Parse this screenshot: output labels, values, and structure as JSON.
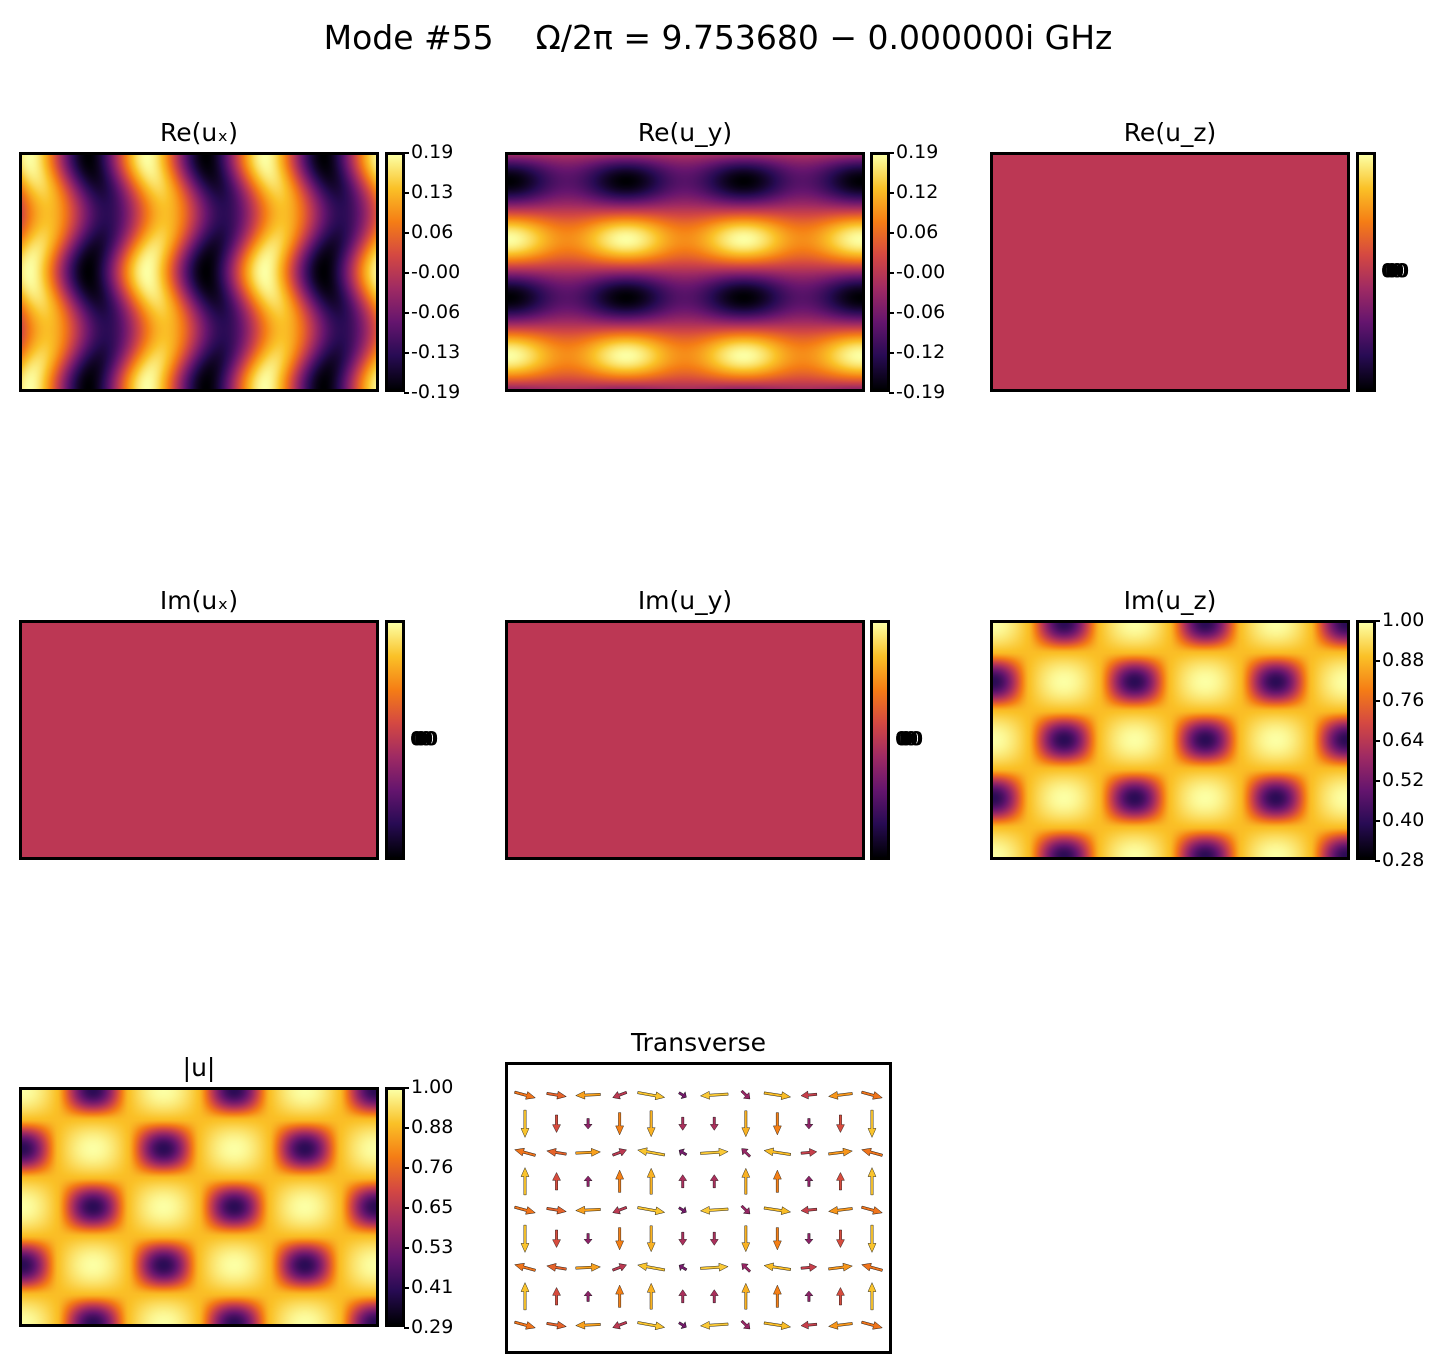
{
  "page_title": "Mode #55    Ω/2π = 9.753680 − 0.000000i GHz",
  "colormap": "inferno",
  "flat_field_color": "#bc3754",
  "chart_data": [
    {
      "type": "heatmap",
      "title": "Re(uₓ)",
      "field_pattern": "vertical stripes along x, period ≈ 1/3 of the width, peaks near x ≈ 0.05, 0.43, 0.77",
      "colorbar_ticks": [
        "0.19",
        "0.13",
        "0.06",
        "-0.00",
        "-0.06",
        "-0.13",
        "-0.19"
      ],
      "clim": [
        -0.19,
        0.19
      ]
    },
    {
      "type": "heatmap",
      "title": "Re(u_y)",
      "field_pattern": "horizontal bands: positive band at y ≈ 0.36, negative band at y ≈ 0.62, weaker bands near the edges",
      "colorbar_ticks": [
        "0.19",
        "0.12",
        "0.06",
        "-0.00",
        "-0.06",
        "-0.12",
        "-0.19"
      ],
      "clim": [
        -0.19,
        0.19
      ]
    },
    {
      "type": "heatmap",
      "title": "Re(u_z)",
      "field_pattern": "uniform (field identically zero)",
      "colorbar_ticks": [
        "0.000",
        "0.000",
        "0.000",
        "0.000",
        "0.000",
        "0.000",
        "0.000"
      ]
    },
    {
      "type": "heatmap",
      "title": "Im(uₓ)",
      "field_pattern": "uniform (field identically zero)",
      "colorbar_ticks": [
        "0.000",
        "0.000",
        "0.000",
        "0.000",
        "0.000",
        "0.000",
        "0.000"
      ]
    },
    {
      "type": "heatmap",
      "title": "Im(u_y)",
      "field_pattern": "uniform (field identically zero)",
      "colorbar_ticks": [
        "0.000",
        "0.000",
        "0.000",
        "0.000",
        "0.000",
        "0.000",
        "0.000"
      ]
    },
    {
      "type": "heatmap",
      "title": "Im(u_z)",
      "field_pattern": "3 × 2 lattice of minima (dark spots) with bright maxima between and at the edges",
      "colorbar_ticks": [
        "1.00",
        "0.88",
        "0.76",
        "0.64",
        "0.52",
        "0.40",
        "0.28"
      ],
      "clim": [
        0.28,
        1.0
      ]
    },
    {
      "type": "heatmap",
      "title": "|u|",
      "field_pattern": "3 × 2 lattice of minima (dark spots) with bright maxima between and at the edges",
      "colorbar_ticks": [
        "1.00",
        "0.88",
        "0.76",
        "0.65",
        "0.53",
        "0.41",
        "0.29"
      ],
      "clim": [
        0.29,
        1.0
      ]
    },
    {
      "type": "quiver",
      "title": "Transverse",
      "grid": [
        12,
        9
      ],
      "field_pattern": "transverse (u_x, u_y) arrows on a 12 × 9 grid, colored by magnitude"
    }
  ]
}
